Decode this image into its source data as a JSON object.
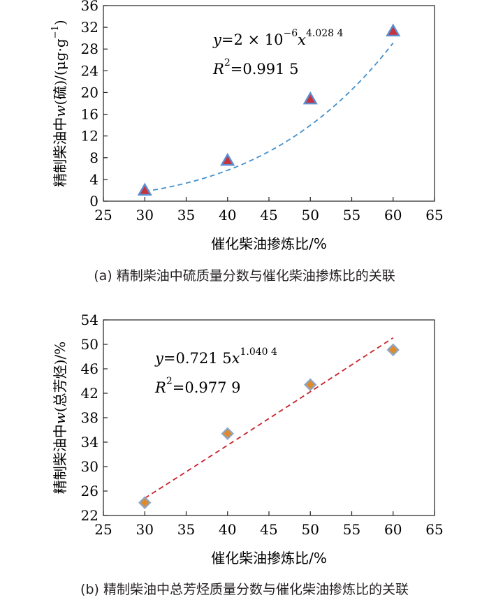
{
  "chart_data": [
    {
      "type": "scatter",
      "xlabel": "催化柴油掺炼比/%",
      "ylabel": {
        "pre": "精制柴油中",
        "w": "w",
        "post": "(硫)/(μg·g",
        "sup": "−1",
        "close": ")"
      },
      "x_ticks": [
        "25",
        "30",
        "35",
        "40",
        "45",
        "50",
        "55",
        "60",
        "65"
      ],
      "y_ticks": [
        "0",
        "4",
        "8",
        "12",
        "16",
        "20",
        "24",
        "28",
        "32",
        "36"
      ],
      "xlim": [
        25,
        65
      ],
      "ylim": [
        0,
        36
      ],
      "points": [
        {
          "x": 30,
          "y": 2.0
        },
        {
          "x": 40,
          "y": 7.5
        },
        {
          "x": 50,
          "y": 18.8
        },
        {
          "x": 60,
          "y": 31.3
        }
      ],
      "fit": {
        "type": "power",
        "a": 2e-06,
        "b": 4.0284,
        "x_from": 30,
        "x_to": 60
      },
      "equation": {
        "y": "y",
        "eq": "=2 × 10",
        "exp1": "−6",
        "x": "x",
        "exp2": "4.028 4"
      },
      "r2": {
        "R": "R",
        "sup": "2",
        "value": "=0.991 5"
      },
      "caption": "(a) 精制柴油中硫质量分数与催化柴油掺炼比的关联",
      "colors": {
        "fit": "#3f8fd0",
        "marker_fill": "#c8323c",
        "marker_edge": "#5b8ed0"
      }
    },
    {
      "type": "scatter",
      "xlabel": "催化柴油掺炼比/%",
      "ylabel": {
        "pre": "精制柴油中",
        "w": "w",
        "post": "(总芳烃)/%"
      },
      "x_ticks": [
        "25",
        "30",
        "35",
        "40",
        "45",
        "50",
        "55",
        "60",
        "65"
      ],
      "y_ticks": [
        "22",
        "26",
        "30",
        "34",
        "38",
        "42",
        "46",
        "50",
        "54"
      ],
      "xlim": [
        25,
        65
      ],
      "ylim": [
        22,
        54
      ],
      "points": [
        {
          "x": 30,
          "y": 24.1
        },
        {
          "x": 40,
          "y": 35.4
        },
        {
          "x": 50,
          "y": 43.4
        },
        {
          "x": 60,
          "y": 49.1
        }
      ],
      "fit": {
        "type": "power",
        "a": 0.7215,
        "b": 1.0404,
        "x_from": 30,
        "x_to": 60
      },
      "equation": {
        "y": "y",
        "eq": "=0.721 5",
        "x": "x",
        "exp2": "1.040 4"
      },
      "r2": {
        "R": "R",
        "sup": "2",
        "value": "=0.977 9"
      },
      "caption": "(b) 精制柴油中总芳烃质量分数与催化柴油掺炼比的关联",
      "colors": {
        "fit": "#c8202a",
        "marker_fill": "#e08a2c",
        "marker_edge": "#8fa6c0"
      }
    }
  ]
}
